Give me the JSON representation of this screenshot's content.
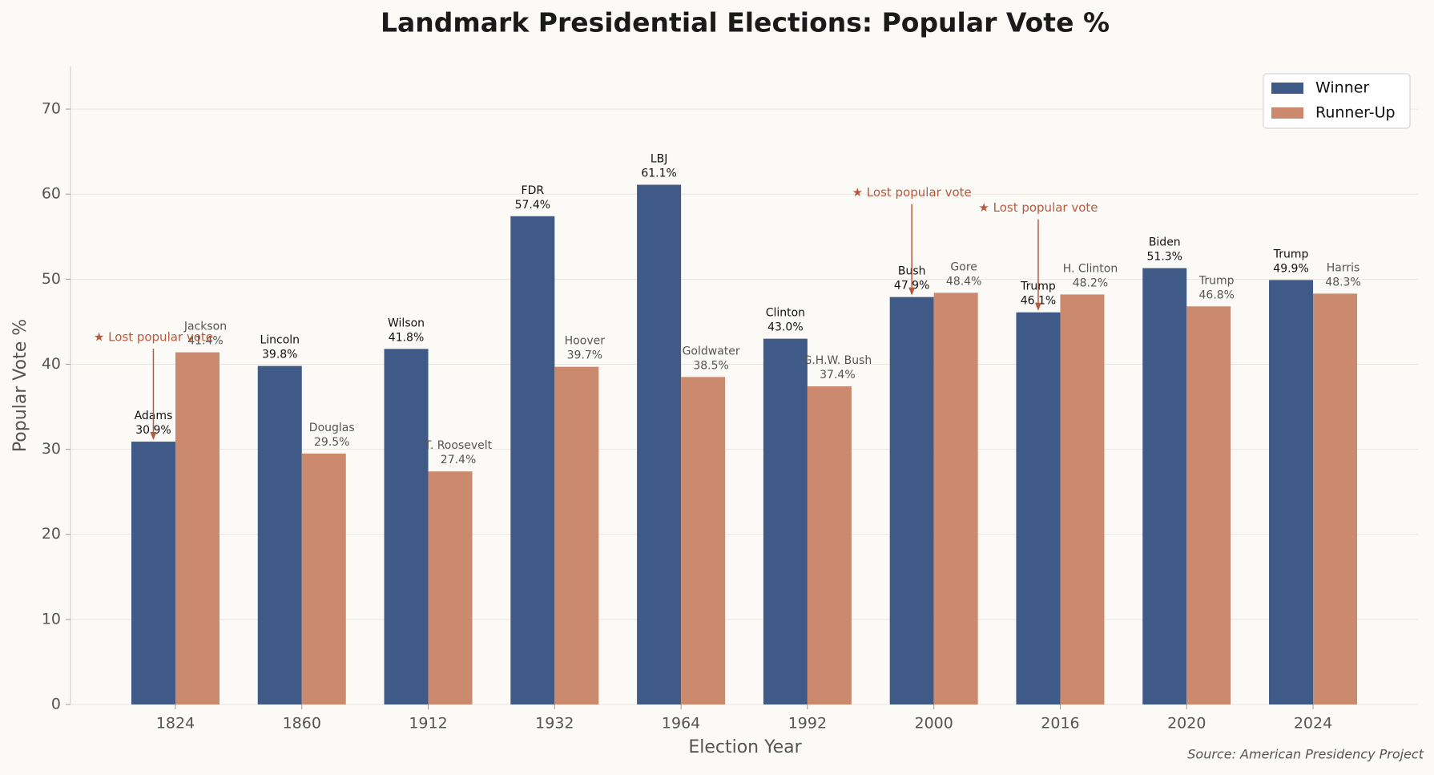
{
  "chart_data": {
    "type": "bar",
    "title": "Landmark Presidential Elections: Popular Vote %",
    "x_label": "Election Year",
    "y_label": "Popular Vote %",
    "source": "Source: American Presidency Project",
    "categories": [
      "1824",
      "1860",
      "1912",
      "1932",
      "1964",
      "1992",
      "2000",
      "2016",
      "2020",
      "2024"
    ],
    "series": [
      {
        "name": "Winner",
        "color": "#3f5a87",
        "values": [
          30.9,
          39.8,
          41.8,
          57.4,
          61.1,
          43.0,
          47.9,
          46.1,
          51.3,
          49.9
        ],
        "value_labels": [
          "30.9%",
          "39.8%",
          "41.8%",
          "57.4%",
          "61.1%",
          "43.0%",
          "47.9%",
          "46.1%",
          "51.3%",
          "49.9%"
        ],
        "candidates": [
          "Adams",
          "Lincoln",
          "Wilson",
          "FDR",
          "LBJ",
          "Clinton",
          "Bush",
          "Trump",
          "Biden",
          "Trump"
        ]
      },
      {
        "name": "Runner-Up",
        "color": "#cb8a6e",
        "values": [
          41.4,
          29.5,
          27.4,
          39.7,
          38.5,
          37.4,
          48.4,
          48.2,
          46.8,
          48.3
        ],
        "value_labels": [
          "41.4%",
          "29.5%",
          "27.4%",
          "39.7%",
          "38.5%",
          "37.4%",
          "48.4%",
          "48.2%",
          "46.8%",
          "48.3%"
        ],
        "candidates": [
          "Jackson",
          "Douglas",
          "T. Roosevelt",
          "Hoover",
          "Goldwater",
          "G.H.W. Bush",
          "Gore",
          "H. Clinton",
          "Trump",
          "Harris"
        ]
      }
    ],
    "annotations": [
      {
        "text": "★ Lost popular vote",
        "category": "1824"
      },
      {
        "text": "★ Lost popular vote",
        "category": "2000"
      },
      {
        "text": "★ Lost popular vote",
        "category": "2016"
      }
    ],
    "ylim": [
      0,
      75
    ],
    "yticks": [
      0,
      10,
      20,
      30,
      40,
      50,
      60,
      70
    ],
    "grid": true,
    "legend": "upper right"
  }
}
